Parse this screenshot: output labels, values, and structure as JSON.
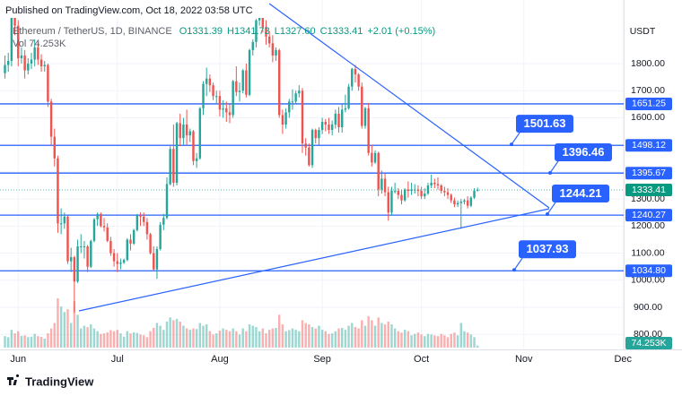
{
  "header": {
    "published": "Published on TradingView.com, Oct 18, 2022 03:58 UTC"
  },
  "footer": {
    "brand": "TradingView"
  },
  "chart_data": {
    "type": "candlestick",
    "symbol": "Ethereum / TetherUS, 1D, BINANCE",
    "ohlc_text": [
      "O1331.39",
      "H1341.73",
      "L1327.60",
      "C1333.41",
      "+2.01 (+0.15%)"
    ],
    "volume_text": "Vol 74.253K",
    "currency": "USDT",
    "colors": {
      "up": "#26a69a",
      "down": "#ef5350",
      "level": "#2962ff",
      "last": "#089981"
    },
    "grid": true,
    "xlim": [
      -1.5,
      187.2
    ],
    "xticks": [
      {
        "value": 4,
        "label": "Jun"
      },
      {
        "value": 34,
        "label": "Jul"
      },
      {
        "value": 65,
        "label": "Aug"
      },
      {
        "value": 96,
        "label": "Sep"
      },
      {
        "value": 126,
        "label": "Oct"
      },
      {
        "value": 157,
        "label": "Nov"
      },
      {
        "value": 187,
        "label": "Dec"
      }
    ],
    "ylim": [
      751,
      2035
    ],
    "yticks": [
      {
        "value": 800,
        "label": "800.00"
      },
      {
        "value": 900,
        "label": "900.00"
      },
      {
        "value": 1000,
        "label": "1000.00"
      },
      {
        "value": 1100,
        "label": "1100.00"
      },
      {
        "value": 1200,
        "label": "1200.00"
      },
      {
        "value": 1300,
        "label": "1300.00"
      },
      {
        "value": 1400,
        "label": "1400.00"
      },
      {
        "value": 1500,
        "label": "1500.00"
      },
      {
        "value": 1600,
        "label": "1600.00"
      },
      {
        "value": 1700,
        "label": "1700.00"
      },
      {
        "value": 1800,
        "label": "1800.00"
      }
    ],
    "open": [
      1765,
      1795,
      1810,
      1995,
      1940,
      1820,
      1830,
      1775,
      1800,
      1815,
      1860,
      1815,
      1790,
      1795,
      1660,
      1530,
      1450,
      1210,
      1210,
      1235,
      1070,
      1085,
      995,
      1125,
      1125,
      1125,
      1050,
      1145,
      1225,
      1245,
      1200,
      1195,
      1145,
      1100,
      1070,
      1060,
      1065,
      1075,
      1150,
      1135,
      1185,
      1240,
      1235,
      1215,
      1170,
      1100,
      1040,
      1115,
      1205,
      1230,
      1355,
      1485,
      1360,
      1580,
      1525,
      1575,
      1535,
      1550,
      1440,
      1450,
      1635,
      1725,
      1745,
      1720,
      1680,
      1680,
      1630,
      1635,
      1620,
      1610,
      1735,
      1695,
      1700,
      1775,
      1685,
      1850,
      1880,
      1960,
      1985,
      1935,
      1900,
      1875,
      1830,
      1850,
      1610,
      1575,
      1620,
      1660,
      1660,
      1690,
      1700,
      1505,
      1490,
      1425,
      1555,
      1525,
      1555,
      1585,
      1575,
      1555,
      1575,
      1615,
      1565,
      1630,
      1635,
      1715,
      1780,
      1760,
      1715,
      1570,
      1635,
      1470,
      1435,
      1470,
      1335,
      1375,
      1325,
      1250,
      1330,
      1330,
      1315,
      1295,
      1335,
      1330,
      1335,
      1335,
      1330,
      1310,
      1320,
      1350,
      1360,
      1355,
      1350,
      1330,
      1325,
      1315,
      1295,
      1280,
      1285,
      1290,
      1295,
      1275,
      1305,
      1331.39
    ],
    "high": [
      1830,
      1840,
      2010,
      2020,
      1960,
      1860,
      1850,
      1820,
      1840,
      1890,
      1880,
      1835,
      1810,
      1800,
      1670,
      1560,
      1460,
      1265,
      1250,
      1240,
      1120,
      1090,
      1150,
      1170,
      1145,
      1130,
      1150,
      1230,
      1250,
      1250,
      1230,
      1210,
      1160,
      1115,
      1100,
      1080,
      1080,
      1155,
      1170,
      1190,
      1245,
      1250,
      1250,
      1230,
      1175,
      1125,
      1125,
      1215,
      1245,
      1380,
      1495,
      1575,
      1585,
      1615,
      1600,
      1630,
      1560,
      1555,
      1470,
      1640,
      1735,
      1785,
      1760,
      1730,
      1700,
      1700,
      1665,
      1660,
      1650,
      1740,
      1790,
      1730,
      1780,
      1800,
      1855,
      1890,
      1965,
      2020,
      2000,
      1960,
      1920,
      1905,
      1860,
      1855,
      1630,
      1635,
      1670,
      1705,
      1700,
      1720,
      1710,
      1525,
      1505,
      1560,
      1560,
      1565,
      1600,
      1595,
      1600,
      1590,
      1630,
      1640,
      1650,
      1685,
      1725,
      1785,
      1795,
      1765,
      1730,
      1640,
      1655,
      1500,
      1480,
      1475,
      1405,
      1395,
      1345,
      1345,
      1360,
      1340,
      1335,
      1340,
      1365,
      1360,
      1355,
      1350,
      1345,
      1340,
      1360,
      1390,
      1375,
      1380,
      1355,
      1345,
      1340,
      1320,
      1305,
      1295,
      1300,
      1300,
      1310,
      1310,
      1340,
      1341.73
    ],
    "low": [
      1745,
      1770,
      1790,
      1905,
      1790,
      1800,
      1745,
      1760,
      1780,
      1790,
      1795,
      1770,
      1770,
      1640,
      1500,
      1420,
      1175,
      1170,
      1190,
      1060,
      1030,
      880,
      990,
      1100,
      1080,
      1030,
      1045,
      1140,
      1200,
      1195,
      1180,
      1140,
      1090,
      1050,
      1030,
      1040,
      1060,
      1070,
      1110,
      1130,
      1180,
      1200,
      1200,
      1150,
      1095,
      1035,
      1005,
      1110,
      1185,
      1225,
      1350,
      1345,
      1350,
      1495,
      1500,
      1500,
      1510,
      1425,
      1415,
      1445,
      1610,
      1680,
      1695,
      1665,
      1650,
      1605,
      1600,
      1585,
      1580,
      1600,
      1680,
      1660,
      1690,
      1675,
      1680,
      1830,
      1860,
      1940,
      1915,
      1870,
      1860,
      1805,
      1810,
      1600,
      1540,
      1560,
      1600,
      1630,
      1650,
      1675,
      1470,
      1460,
      1420,
      1415,
      1505,
      1500,
      1540,
      1550,
      1540,
      1535,
      1560,
      1545,
      1545,
      1620,
      1630,
      1700,
      1730,
      1700,
      1560,
      1560,
      1460,
      1420,
      1430,
      1310,
      1320,
      1310,
      1220,
      1240,
      1320,
      1300,
      1280,
      1290,
      1305,
      1315,
      1320,
      1310,
      1300,
      1300,
      1315,
      1340,
      1340,
      1335,
      1320,
      1310,
      1300,
      1285,
      1270,
      1270,
      1190,
      1280,
      1265,
      1270,
      1300,
      1327.6
    ],
    "close": [
      1795,
      1810,
      1995,
      1940,
      1820,
      1830,
      1775,
      1800,
      1815,
      1860,
      1815,
      1790,
      1795,
      1660,
      1530,
      1450,
      1210,
      1210,
      1235,
      1070,
      1085,
      995,
      1125,
      1125,
      1125,
      1050,
      1145,
      1225,
      1245,
      1200,
      1195,
      1145,
      1100,
      1070,
      1060,
      1065,
      1075,
      1150,
      1135,
      1185,
      1240,
      1235,
      1215,
      1170,
      1100,
      1040,
      1115,
      1205,
      1230,
      1355,
      1485,
      1360,
      1580,
      1525,
      1575,
      1535,
      1550,
      1440,
      1450,
      1635,
      1725,
      1745,
      1720,
      1680,
      1680,
      1630,
      1635,
      1620,
      1610,
      1735,
      1695,
      1700,
      1775,
      1685,
      1850,
      1880,
      1960,
      1985,
      1935,
      1900,
      1875,
      1830,
      1850,
      1610,
      1575,
      1620,
      1660,
      1660,
      1690,
      1700,
      1505,
      1490,
      1425,
      1555,
      1525,
      1555,
      1585,
      1575,
      1555,
      1575,
      1615,
      1565,
      1630,
      1635,
      1715,
      1780,
      1760,
      1715,
      1570,
      1635,
      1470,
      1435,
      1470,
      1335,
      1375,
      1325,
      1250,
      1330,
      1330,
      1315,
      1295,
      1335,
      1330,
      1335,
      1335,
      1330,
      1310,
      1320,
      1350,
      1360,
      1355,
      1350,
      1330,
      1325,
      1315,
      1295,
      1280,
      1285,
      1290,
      1295,
      1275,
      1305,
      1331.39,
      1333.41
    ],
    "volume": [
      420,
      380,
      650,
      520,
      600,
      430,
      450,
      380,
      400,
      500,
      420,
      390,
      330,
      520,
      700,
      900,
      1800,
      1500,
      1300,
      1400,
      900,
      1700,
      1200,
      700,
      800,
      750,
      850,
      700,
      600,
      500,
      520,
      560,
      640,
      600,
      650,
      520,
      400,
      600,
      520,
      560,
      540,
      480,
      450,
      380,
      600,
      720,
      900,
      800,
      650,
      950,
      1100,
      1000,
      1050,
      950,
      800,
      700,
      650,
      700,
      680,
      900,
      800,
      850,
      600,
      480,
      520,
      620,
      700,
      650,
      600,
      700,
      600,
      480,
      700,
      600,
      850,
      800,
      750,
      600,
      700,
      520,
      650,
      700,
      720,
      1200,
      850,
      600,
      640,
      700,
      650,
      600,
      1000,
      900,
      850,
      750,
      700,
      800,
      650,
      600,
      500,
      520,
      600,
      700,
      720,
      650,
      800,
      900,
      750,
      700,
      1000,
      800,
      1150,
      1000,
      800,
      1100,
      900,
      850,
      950,
      850,
      700,
      600,
      550,
      650,
      600,
      450,
      500,
      550,
      480,
      420,
      500,
      480,
      450,
      420,
      500,
      450,
      380,
      500,
      550,
      450,
      900,
      600,
      550,
      480,
      380,
      74.253
    ],
    "volume_last_label": "74.253K",
    "levels": [
      1651.25,
      1498.12,
      1395.67,
      1240.27,
      {
        "value": 1034.8,
        "label": "1034.80"
      }
    ],
    "callouts": [
      1501.63,
      1396.46,
      1244.21,
      1037.93
    ],
    "last_price": 1333.41
  }
}
